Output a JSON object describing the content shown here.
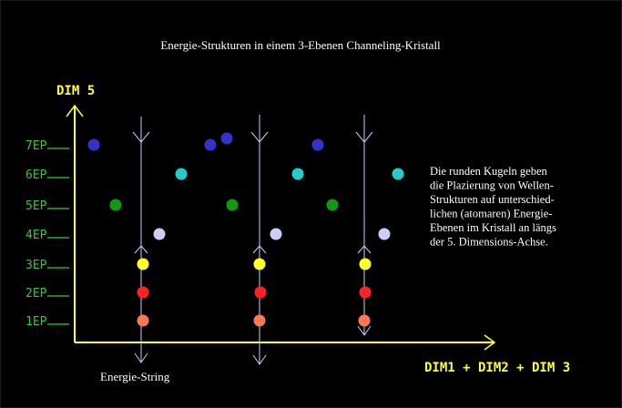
{
  "title": "Energie-Strukturen in einem 3-Ebenen Channeling-Kristall",
  "axes": {
    "y_label": "DIM 5",
    "x_label": "DIM1 + DIM2 + DIM 3"
  },
  "levels": [
    "1EP",
    "2EP",
    "3EP",
    "4EP",
    "5EP",
    "6EP",
    "7EP"
  ],
  "string_label": "Energie-String",
  "description_lines": [
    "Die runden Kugeln geben",
    "die Plazierung von Wellen-",
    "Strukturen auf unterschied-",
    "lichen (atomaren) Energie-",
    "Ebenen im Kristall an längs",
    "der 5. Dimensions-Achse."
  ],
  "colors": {
    "background": "#000000",
    "axis": "#ffff33",
    "level_labels": "#33cc33",
    "strings": "#ccccff",
    "level_1": "#ff7755",
    "level_2": "#ff2222",
    "level_3": "#ffff22",
    "level_4": "#ccccff",
    "level_5": "#119911",
    "level_6": "#22cccc",
    "level_7": "#3333cc"
  },
  "spheres": [
    {
      "string": 1,
      "level": 1
    },
    {
      "string": 1,
      "level": 2
    },
    {
      "string": 1,
      "level": 3
    },
    {
      "string": 1,
      "level": 4
    },
    {
      "string": 1,
      "level": 5
    },
    {
      "string": 1,
      "level": 6
    },
    {
      "string": 1,
      "level": 7
    },
    {
      "string": 2,
      "level": 1
    },
    {
      "string": 2,
      "level": 2
    },
    {
      "string": 2,
      "level": 3
    },
    {
      "string": 2,
      "level": 4
    },
    {
      "string": 2,
      "level": 5
    },
    {
      "string": 2,
      "level": 6
    },
    {
      "string": 2,
      "level": 7
    },
    {
      "string": 3,
      "level": 1
    },
    {
      "string": 3,
      "level": 2
    },
    {
      "string": 3,
      "level": 3
    },
    {
      "string": 3,
      "level": 4
    },
    {
      "string": 3,
      "level": 5
    },
    {
      "string": 3,
      "level": 6
    },
    {
      "string": 3,
      "level": 7
    }
  ]
}
